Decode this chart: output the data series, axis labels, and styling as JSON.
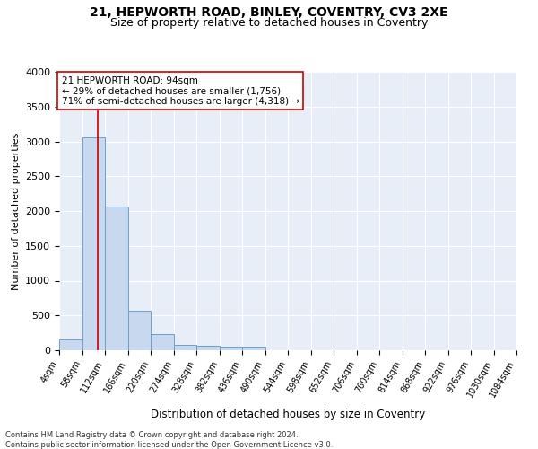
{
  "title": "21, HEPWORTH ROAD, BINLEY, COVENTRY, CV3 2XE",
  "subtitle": "Size of property relative to detached houses in Coventry",
  "xlabel": "Distribution of detached houses by size in Coventry",
  "ylabel": "Number of detached properties",
  "bin_edges": [
    4,
    58,
    112,
    166,
    220,
    274,
    328,
    382,
    436,
    490,
    544,
    598,
    652,
    706,
    760,
    814,
    868,
    922,
    976,
    1030,
    1084
  ],
  "bar_heights": [
    150,
    3060,
    2060,
    570,
    230,
    80,
    60,
    50,
    50,
    0,
    0,
    0,
    0,
    0,
    0,
    0,
    0,
    0,
    0,
    0
  ],
  "bar_color": "#c8d8ee",
  "bar_edge_color": "#6aa0cc",
  "property_size": 94,
  "vline_color": "#cc0000",
  "annotation_text": "21 HEPWORTH ROAD: 94sqm\n← 29% of detached houses are smaller (1,756)\n71% of semi-detached houses are larger (4,318) →",
  "annotation_box_color": "#ffffff",
  "annotation_box_edge": "#cc0000",
  "ylim": [
    0,
    4000
  ],
  "background_color": "#e8eef8",
  "grid_color": "#ffffff",
  "footer_text": "Contains HM Land Registry data © Crown copyright and database right 2024.\nContains public sector information licensed under the Open Government Licence v3.0.",
  "title_fontsize": 10,
  "subtitle_fontsize": 9,
  "tick_label_fontsize": 7,
  "ylabel_fontsize": 8,
  "xlabel_fontsize": 8.5,
  "footer_fontsize": 6,
  "annotation_fontsize": 7.5
}
